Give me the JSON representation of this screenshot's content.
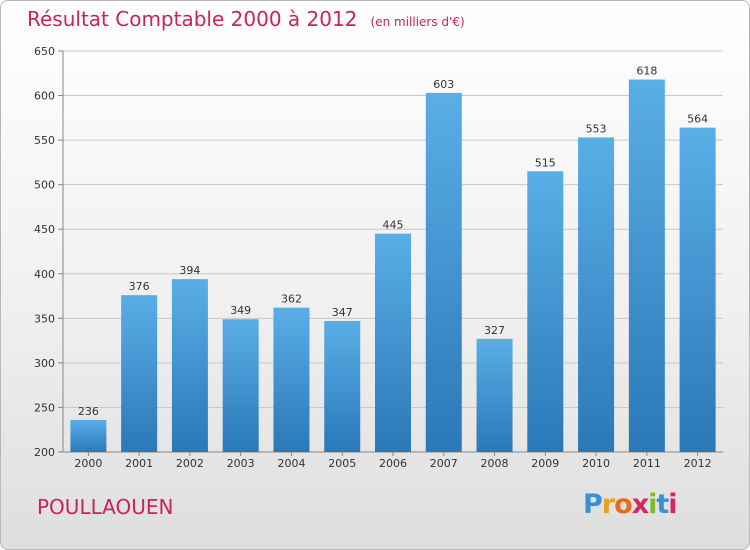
{
  "title": "Résultat Comptable 2000 à 2012",
  "subtitle": "(en milliers d'€)",
  "commune": "POULLAOUEN",
  "logo": {
    "letters": [
      "P",
      "r",
      "o",
      "x",
      "i",
      "t",
      "i"
    ],
    "colors": [
      "#3a8fd6",
      "#e8a21c",
      "#e86a1c",
      "#d6265f",
      "#7dbb2a",
      "#3a8fd6",
      "#d6265f"
    ]
  },
  "colors": {
    "title": "#c8235a",
    "bar_light": "#5aaee6",
    "bar_dark": "#2a78b8",
    "grid": "#c8c8c8",
    "label": "#333333"
  },
  "chart_data": {
    "type": "bar",
    "categories": [
      "2000",
      "2001",
      "2002",
      "2003",
      "2004",
      "2005",
      "2006",
      "2007",
      "2008",
      "2009",
      "2010",
      "2011",
      "2012"
    ],
    "values": [
      236,
      376,
      394,
      349,
      362,
      347,
      445,
      603,
      327,
      515,
      553,
      618,
      564
    ],
    "yticks": [
      200,
      250,
      300,
      350,
      400,
      450,
      500,
      550,
      600,
      650
    ],
    "ylim": [
      200,
      650
    ],
    "grid": true,
    "data_labels": true
  }
}
